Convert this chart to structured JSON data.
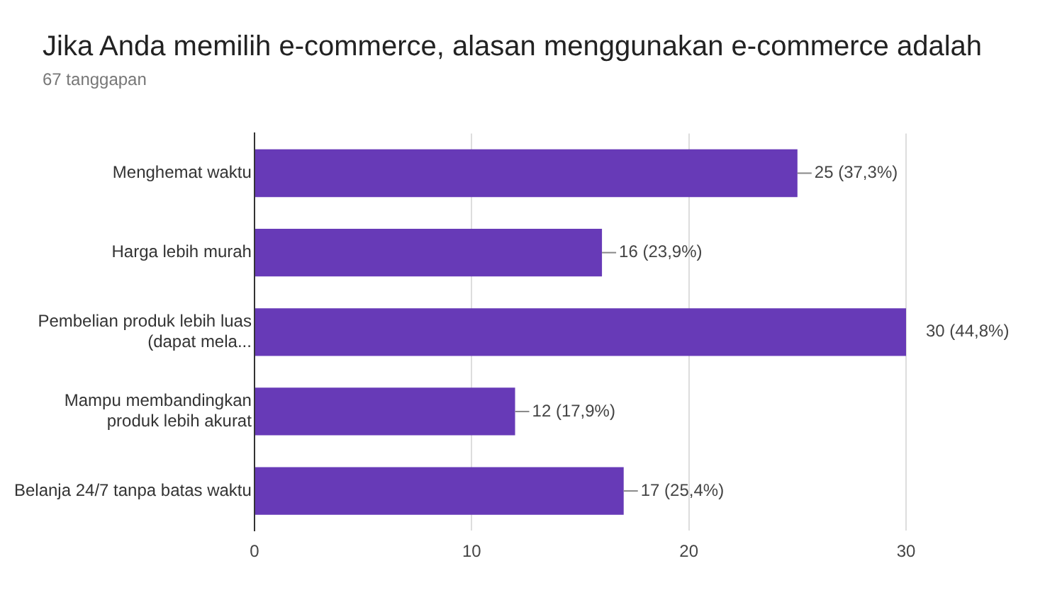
{
  "chart_data": {
    "type": "bar",
    "orientation": "horizontal",
    "title": "Jika Anda memilih e-commerce, alasan menggunakan e-commerce adalah",
    "subtitle": "67 tanggapan",
    "categories": [
      "Menghemat waktu",
      "Harga lebih murah",
      "Pembelian produk lebih luas\n(dapat mela...",
      "Mampu membandingkan\nproduk lebih akurat",
      "Belanja 24/7 tanpa batas waktu"
    ],
    "values": [
      25,
      16,
      30,
      12,
      17
    ],
    "value_labels": [
      "25 (37,3%)",
      "16 (23,9%)",
      "30 (44,8%)",
      "12 (17,9%)",
      "17 (25,4%)"
    ],
    "color": "#673ab7",
    "xlim": [
      0,
      30
    ],
    "xticks": [
      0,
      10,
      20,
      30
    ],
    "grid": "x",
    "legend": false
  }
}
